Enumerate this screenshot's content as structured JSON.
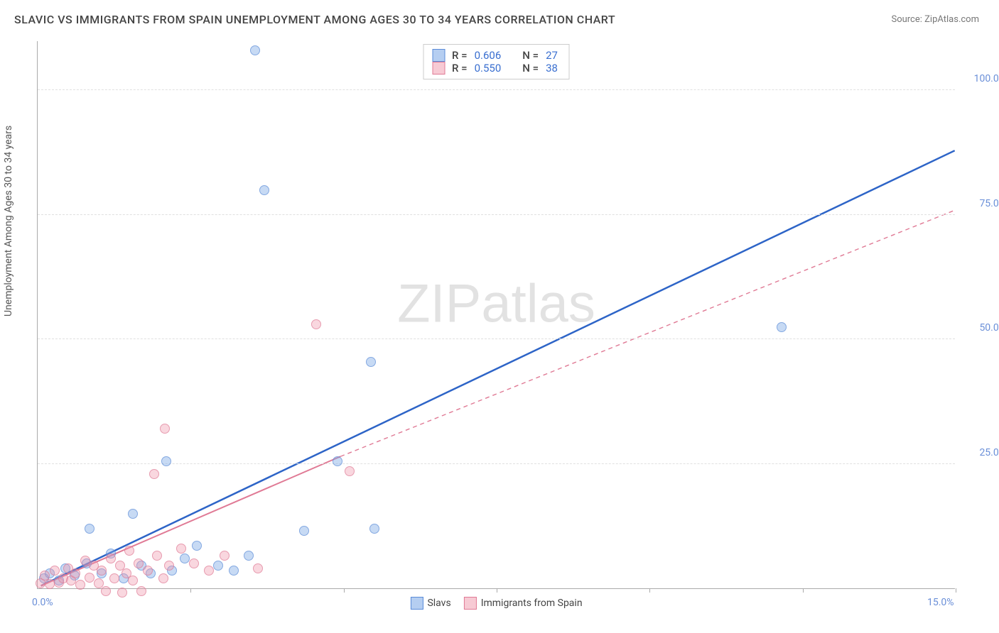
{
  "title": "SLAVIC VS IMMIGRANTS FROM SPAIN UNEMPLOYMENT AMONG AGES 30 TO 34 YEARS CORRELATION CHART",
  "source": "Source: ZipAtlas.com",
  "watermark": {
    "part1": "ZIP",
    "part2": "atlas"
  },
  "chart": {
    "type": "scatter-with-regression",
    "yaxis_label": "Unemployment Among Ages 30 to 34 years",
    "xlim": [
      0,
      15
    ],
    "ylim": [
      0,
      110
    ],
    "xticks": [
      0,
      15
    ],
    "xtick_labels": [
      "0.0%",
      "15.0%"
    ],
    "xgrid": [
      2.5,
      5.0,
      7.5,
      10.0,
      12.5,
      15.0
    ],
    "yticks": [
      25,
      50,
      75,
      100
    ],
    "ytick_labels": [
      "25.0%",
      "50.0%",
      "75.0%",
      "100.0%"
    ],
    "background_color": "#ffffff",
    "grid_color": "#e0e0e0",
    "axis_color": "#aaaaaa",
    "tick_font_color": "#6a8fd8",
    "tick_fontsize": 14,
    "title_fontsize": 16,
    "marker_size": 14,
    "stats_box": {
      "rows": [
        {
          "swatch": "blue",
          "R_label": "R =",
          "R": "0.606",
          "N_label": "N =",
          "N": "27"
        },
        {
          "swatch": "pink",
          "R_label": "R =",
          "R": "0.550",
          "N_label": "N =",
          "N": "38"
        }
      ]
    },
    "legend": [
      {
        "swatch": "blue",
        "label": "Slavs"
      },
      {
        "swatch": "pink",
        "label": "Immigrants from Spain"
      }
    ],
    "series": [
      {
        "name": "Slavs",
        "color": "#5a8bd8",
        "fill": "rgba(120,165,230,0.55)",
        "css": "pt-b",
        "regression": {
          "color": "#2d64c7",
          "width": 2.5,
          "solid": {
            "x1": 0.05,
            "y1": 0.5,
            "x2": 15.0,
            "y2": 88.0
          },
          "dash": null
        },
        "points": [
          {
            "x": 0.1,
            "y": 2.0
          },
          {
            "x": 0.2,
            "y": 3.0
          },
          {
            "x": 0.35,
            "y": 1.5
          },
          {
            "x": 0.45,
            "y": 4.0
          },
          {
            "x": 0.6,
            "y": 2.5
          },
          {
            "x": 0.8,
            "y": 5.0
          },
          {
            "x": 0.85,
            "y": 12.0
          },
          {
            "x": 1.05,
            "y": 3.0
          },
          {
            "x": 1.2,
            "y": 7.0
          },
          {
            "x": 1.4,
            "y": 2.0
          },
          {
            "x": 1.55,
            "y": 15.0
          },
          {
            "x": 1.7,
            "y": 4.5
          },
          {
            "x": 1.85,
            "y": 3.0
          },
          {
            "x": 2.1,
            "y": 25.5
          },
          {
            "x": 2.2,
            "y": 3.5
          },
          {
            "x": 2.4,
            "y": 6.0
          },
          {
            "x": 2.6,
            "y": 8.5
          },
          {
            "x": 2.95,
            "y": 4.5
          },
          {
            "x": 3.2,
            "y": 3.5
          },
          {
            "x": 3.45,
            "y": 6.5
          },
          {
            "x": 3.55,
            "y": 108.0
          },
          {
            "x": 3.7,
            "y": 80.0
          },
          {
            "x": 4.35,
            "y": 11.5
          },
          {
            "x": 4.9,
            "y": 25.5
          },
          {
            "x": 5.45,
            "y": 45.5
          },
          {
            "x": 5.5,
            "y": 12.0
          },
          {
            "x": 12.15,
            "y": 52.5
          }
        ]
      },
      {
        "name": "Immigrants from Spain",
        "color": "#e07a95",
        "fill": "rgba(240,150,170,0.5)",
        "css": "pt-p",
        "regression": {
          "color": "#e07a95",
          "width": 2,
          "solid": {
            "x1": 0.05,
            "y1": 0.5,
            "x2": 4.95,
            "y2": 26.5
          },
          "dash": {
            "x1": 4.95,
            "y1": 26.5,
            "x2": 15.0,
            "y2": 76.0
          }
        },
        "points": [
          {
            "x": 0.05,
            "y": 1.0
          },
          {
            "x": 0.12,
            "y": 2.5
          },
          {
            "x": 0.2,
            "y": 0.8
          },
          {
            "x": 0.28,
            "y": 3.5
          },
          {
            "x": 0.35,
            "y": 1.2
          },
          {
            "x": 0.42,
            "y": 2.0
          },
          {
            "x": 0.5,
            "y": 4.0
          },
          {
            "x": 0.55,
            "y": 1.5
          },
          {
            "x": 0.62,
            "y": 3.0
          },
          {
            "x": 0.7,
            "y": 0.7
          },
          {
            "x": 0.78,
            "y": 5.5
          },
          {
            "x": 0.85,
            "y": 2.2
          },
          {
            "x": 0.92,
            "y": 4.5
          },
          {
            "x": 1.0,
            "y": 1.0
          },
          {
            "x": 1.05,
            "y": 3.5
          },
          {
            "x": 1.12,
            "y": -0.5
          },
          {
            "x": 1.2,
            "y": 6.0
          },
          {
            "x": 1.25,
            "y": 2.0
          },
          {
            "x": 1.35,
            "y": 4.5
          },
          {
            "x": 1.38,
            "y": -0.8
          },
          {
            "x": 1.45,
            "y": 3.0
          },
          {
            "x": 1.5,
            "y": 7.5
          },
          {
            "x": 1.55,
            "y": 1.5
          },
          {
            "x": 1.65,
            "y": 5.0
          },
          {
            "x": 1.7,
            "y": -0.5
          },
          {
            "x": 1.8,
            "y": 3.5
          },
          {
            "x": 1.9,
            "y": 23.0
          },
          {
            "x": 1.95,
            "y": 6.5
          },
          {
            "x": 2.05,
            "y": 2.0
          },
          {
            "x": 2.08,
            "y": 32.0
          },
          {
            "x": 2.15,
            "y": 4.5
          },
          {
            "x": 2.35,
            "y": 8.0
          },
          {
            "x": 2.55,
            "y": 5.0
          },
          {
            "x": 2.8,
            "y": 3.5
          },
          {
            "x": 3.05,
            "y": 6.5
          },
          {
            "x": 3.6,
            "y": 4.0
          },
          {
            "x": 4.55,
            "y": 53.0
          },
          {
            "x": 5.1,
            "y": 23.5
          }
        ]
      }
    ]
  }
}
